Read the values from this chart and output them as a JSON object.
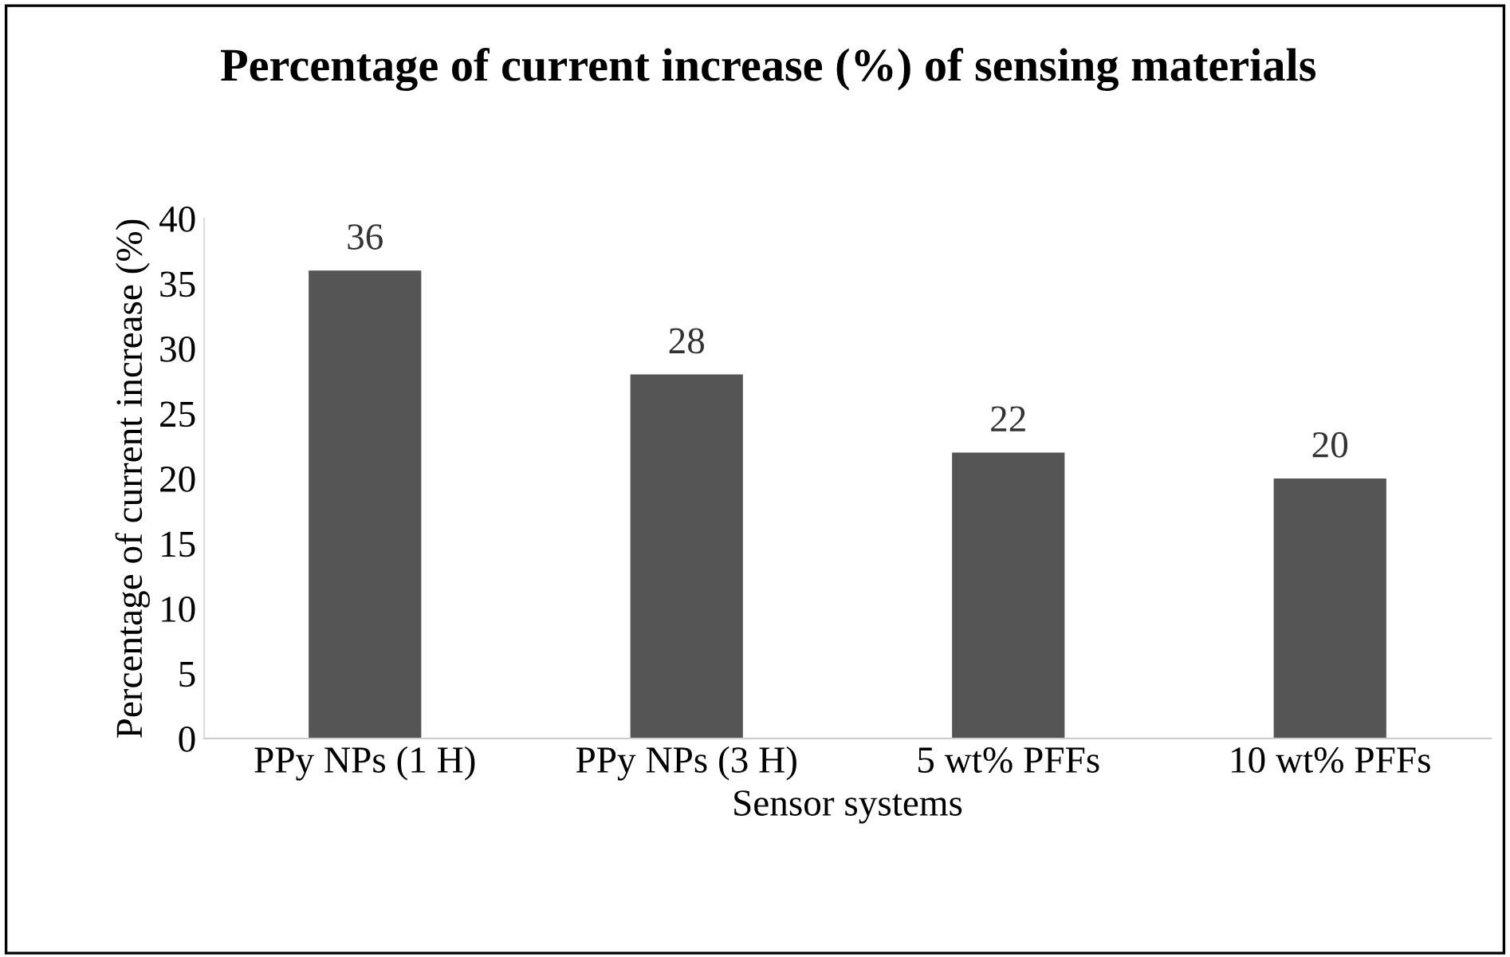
{
  "chart_data": {
    "type": "bar",
    "title": "Percentage of current increase (%) of sensing materials",
    "xlabel": "Sensor systems",
    "ylabel": "Percentage of current increase (%)",
    "categories": [
      "PPy NPs (1 H)",
      "PPy NPs (3 H)",
      "5 wt% PFFs",
      "10 wt% PFFs"
    ],
    "values": [
      36,
      28,
      22,
      20
    ],
    "color": "#555555",
    "ylim": [
      0,
      40
    ],
    "yticks": [
      0,
      5,
      10,
      15,
      20,
      25,
      30,
      35,
      40
    ],
    "grid": false,
    "data_labels": true
  }
}
